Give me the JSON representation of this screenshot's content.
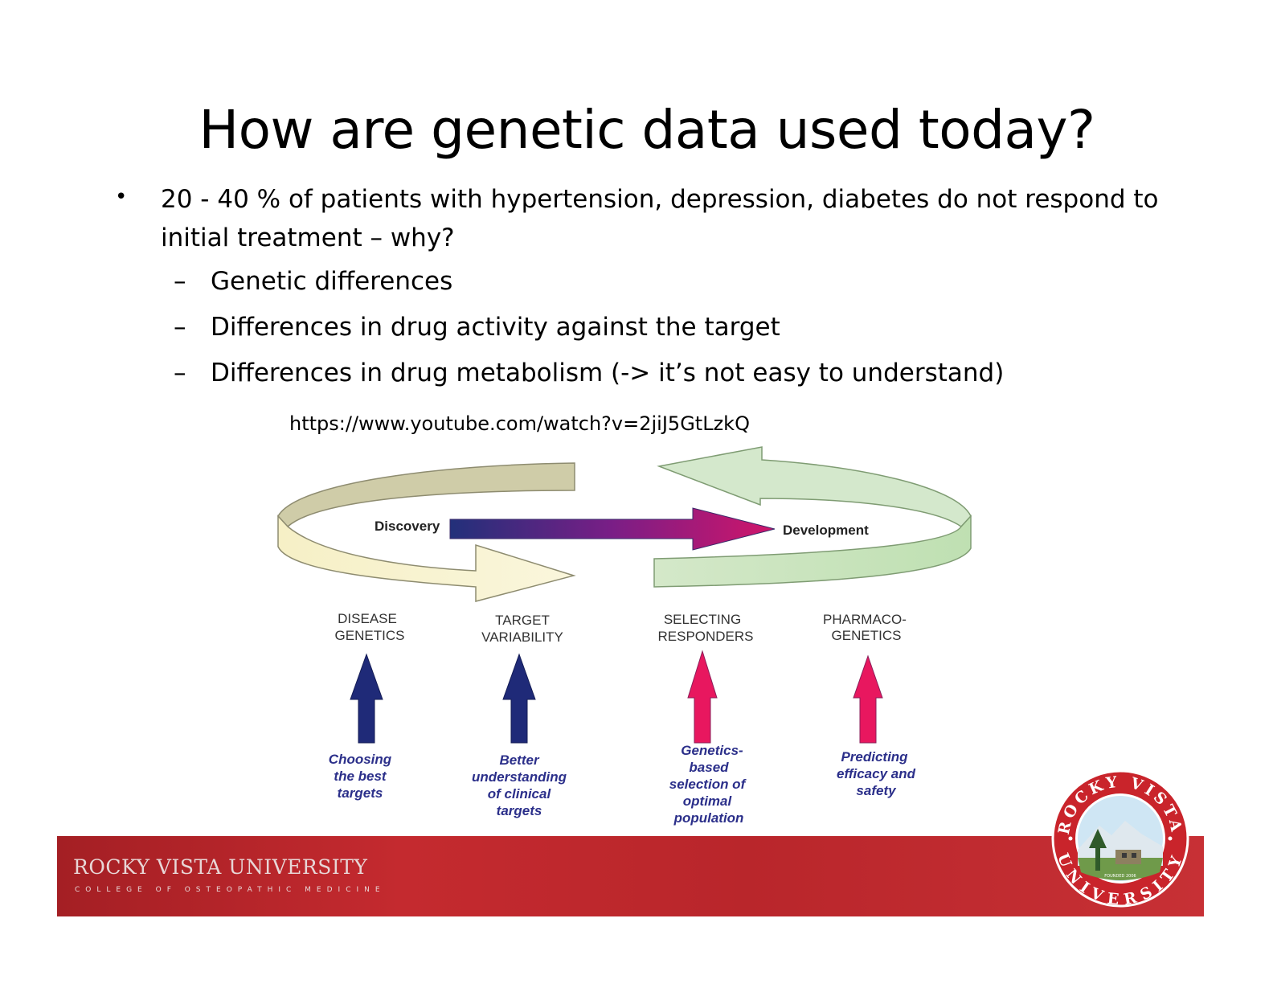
{
  "slide": {
    "title": "How are genetic data used today?",
    "bullet": "20 - 40 % of patients with hypertension, depression, diabetes do not respond to initial treatment – why?",
    "sub_items": [
      "Genetic differences",
      "Differences in drug activity against the target",
      "Differences in drug metabolism (-> it’s not easy to understand)"
    ],
    "link": "https://www.youtube.com/watch?v=2jiJ5GtLzkQ"
  },
  "diagram": {
    "discovery": "Discovery",
    "development": "Development",
    "stages": [
      {
        "line1": "DISEASE",
        "line2": "GENETICS",
        "arrow_color": "#1f2a78",
        "caption": [
          "Choosing",
          "the best",
          "targets"
        ]
      },
      {
        "line1": "TARGET",
        "line2": "VARIABILITY",
        "arrow_color": "#1f2a78",
        "caption": [
          "Better",
          "understanding",
          "of clinical",
          "targets"
        ]
      },
      {
        "line1": "SELECTING",
        "line2": "RESPONDERS",
        "arrow_color": "#e8175f",
        "caption": [
          "Genetics-",
          "based",
          "selection of",
          "optimal",
          "population"
        ]
      },
      {
        "line1": "PHARMACO-",
        "line2": "GENETICS",
        "arrow_color": "#e8175f",
        "caption": [
          "Predicting",
          "efficacy and",
          "safety"
        ]
      }
    ]
  },
  "footer": {
    "university": "ROCKY VISTA UNIVERSITY",
    "college": "COLLEGE OF OSTEOPATHIC MEDICINE",
    "seal_top": "ROCKY VISTA",
    "seal_bottom": "UNIVERSITY",
    "seal_founded": "FOUNDED 2006"
  },
  "colors": {
    "footer_red": "#b9262b",
    "blue_arrow": "#1f2a78",
    "pink_arrow": "#e8175f",
    "caption_blue": "#2b2f8a"
  }
}
